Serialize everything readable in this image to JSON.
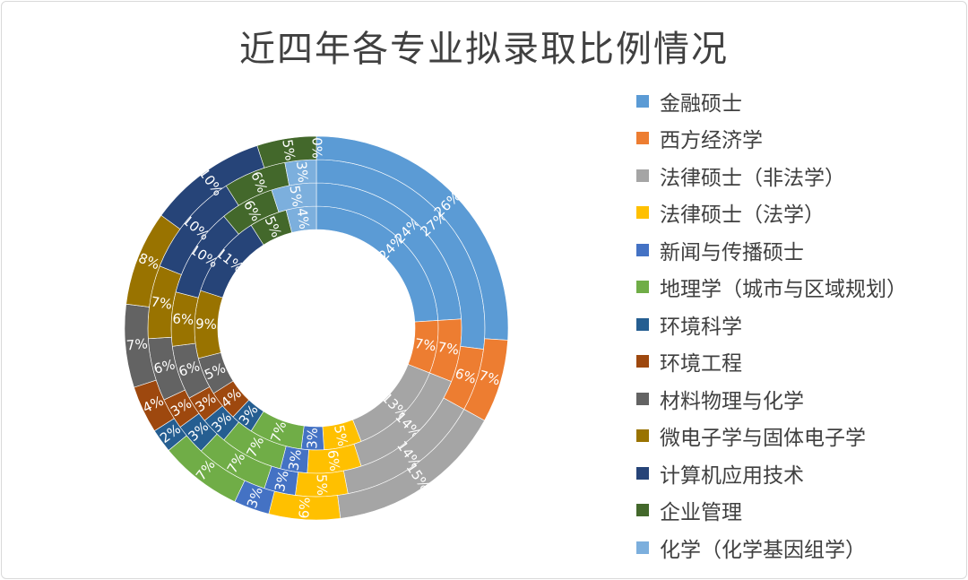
{
  "chart_data": {
    "type": "donut",
    "title": "近四年各专业拟录取比例情况",
    "legend_position": "right",
    "categories": [
      "金融硕士",
      "西方经济学",
      "法律硕士（非法学）",
      "法律硕士（法学）",
      "新闻与传播硕士",
      "地理学（城市与区域规划）",
      "环境科学",
      "环境工程",
      "材料物理与化学",
      "微电子学与固体电子学",
      "计算机应用技术",
      "企业管理",
      "化学（化学基因组学）"
    ],
    "colors": [
      "#5B9BD5",
      "#ED7D31",
      "#A5A5A5",
      "#FFC000",
      "#4472C4",
      "#70AD47",
      "#255E91",
      "#9E480E",
      "#636363",
      "#997300",
      "#264478",
      "#43682B",
      "#7CAFDD"
    ],
    "rings_inner_to_outer": [
      [
        24,
        7,
        13,
        5,
        3,
        7,
        3,
        4,
        5,
        9,
        11,
        5,
        4
      ],
      [
        24,
        7,
        14,
        6,
        3,
        7,
        3,
        3,
        6,
        6,
        10,
        6,
        5
      ],
      [
        27,
        6,
        14,
        5,
        3,
        7,
        3,
        3,
        6,
        7,
        10,
        6,
        3
      ],
      [
        26,
        7,
        15,
        6,
        3,
        7,
        2,
        4,
        7,
        8,
        10,
        5,
        0
      ]
    ],
    "unit": "%"
  }
}
